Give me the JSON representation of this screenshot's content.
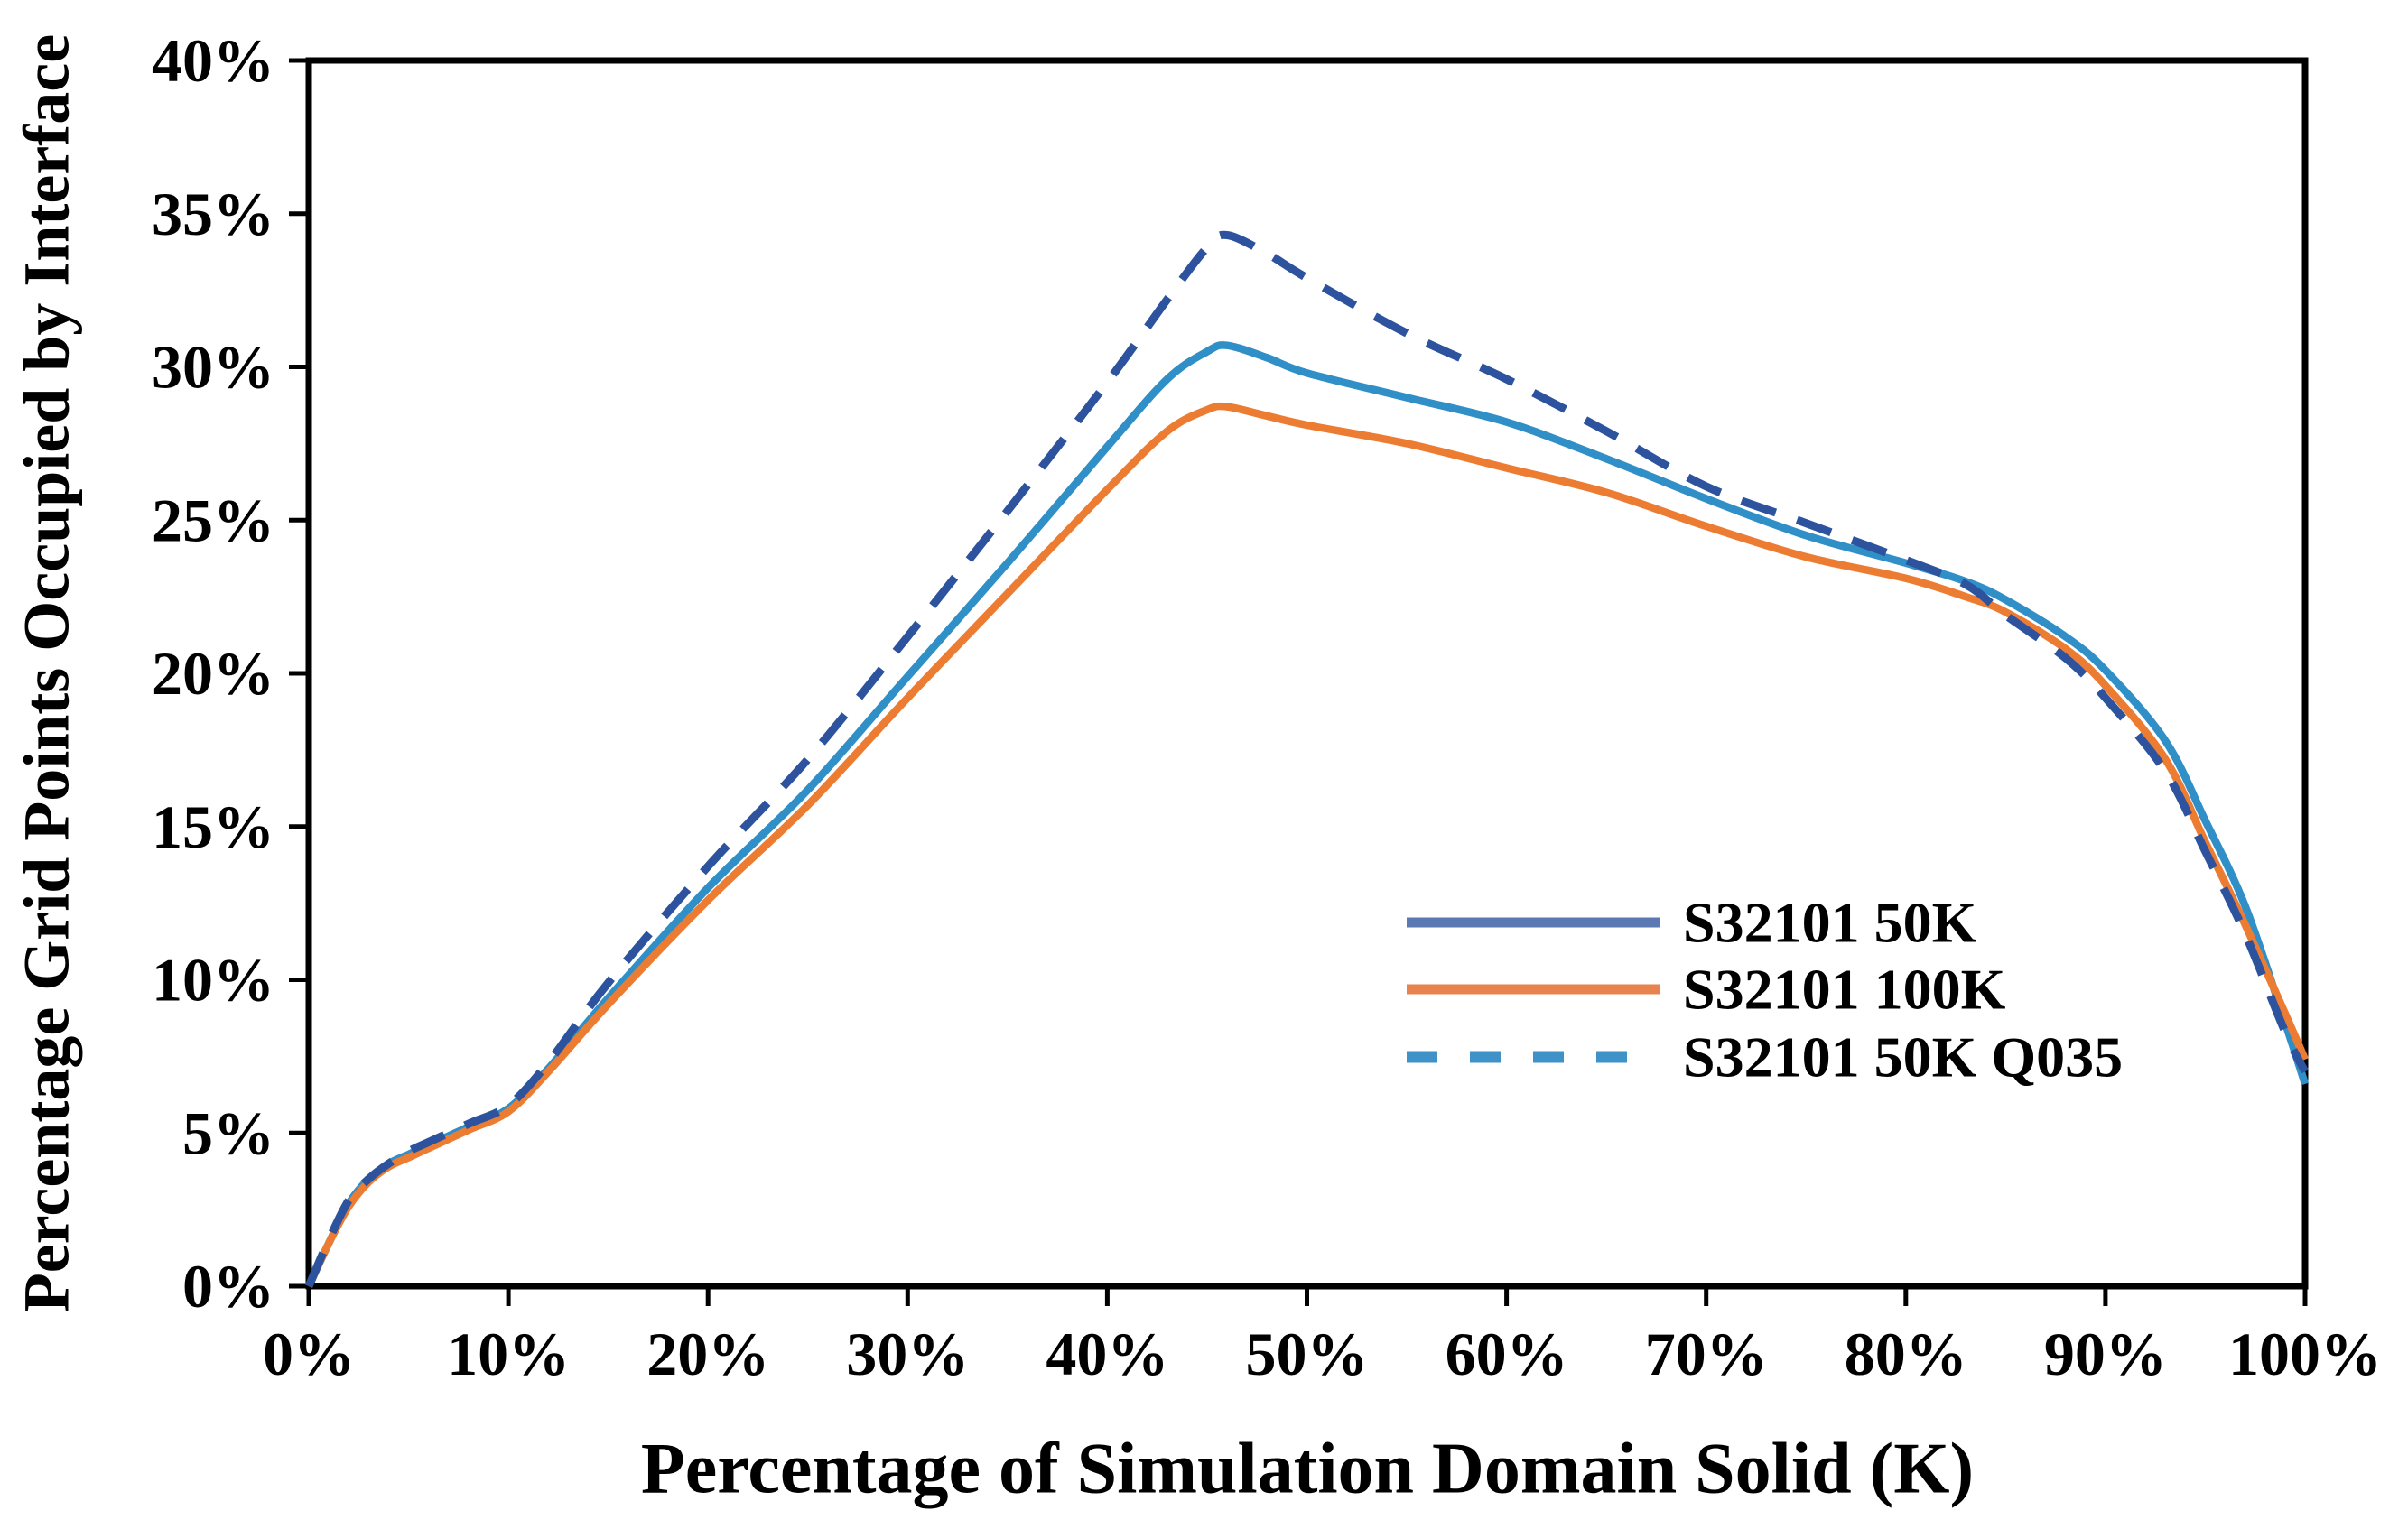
{
  "chart_data": {
    "type": "line",
    "title": "",
    "xlabel": "Percentage of Simulation Domain Solid (K)",
    "ylabel": "Percentage Grid Points Occupied by Interface",
    "xlim": [
      0,
      100
    ],
    "ylim": [
      0,
      40
    ],
    "grid": "off",
    "legend_position": "inside-right-middle",
    "x_tick_labels": [
      "0%",
      "10%",
      "20%",
      "30%",
      "40%",
      "50%",
      "60%",
      "70%",
      "80%",
      "90%",
      "100%"
    ],
    "y_tick_labels": [
      "0%",
      "5%",
      "10%",
      "15%",
      "20%",
      "25%",
      "30%",
      "35%",
      "40%"
    ],
    "x": [
      0,
      1,
      2,
      3,
      4,
      5,
      6,
      8,
      10,
      12,
      15,
      20,
      25,
      30,
      35,
      40,
      43,
      45,
      46,
      48,
      50,
      55,
      60,
      65,
      70,
      75,
      80,
      83,
      85,
      88,
      90,
      93,
      95,
      97,
      99,
      100
    ],
    "series": [
      {
        "name": "S32101 50K",
        "style": "solid",
        "color": "#2f8fc6",
        "legend_color": "#5b79b3",
        "values": [
          0,
          1.4,
          2.7,
          3.5,
          4.0,
          4.3,
          4.6,
          5.2,
          5.8,
          7.1,
          9.4,
          13.0,
          16.2,
          19.9,
          23.6,
          27.4,
          29.6,
          30.5,
          30.7,
          30.3,
          29.8,
          29.0,
          28.2,
          27.0,
          25.7,
          24.5,
          23.6,
          23.0,
          22.4,
          21.2,
          20.1,
          17.8,
          15.2,
          12.4,
          8.6,
          6.6
        ]
      },
      {
        "name": "S32101 100K",
        "style": "solid",
        "color": "#ed7c33",
        "legend_color": "#e8834f",
        "values": [
          0,
          1.4,
          2.6,
          3.4,
          3.9,
          4.2,
          4.5,
          5.1,
          5.7,
          7.0,
          9.2,
          12.6,
          15.7,
          19.2,
          22.6,
          26.0,
          27.9,
          28.6,
          28.7,
          28.4,
          28.1,
          27.5,
          26.7,
          25.9,
          24.8,
          23.8,
          23.1,
          22.5,
          22.0,
          20.8,
          19.6,
          17.2,
          14.5,
          11.8,
          8.9,
          7.4
        ]
      },
      {
        "name": "S32101 50K Q035",
        "style": "dashed",
        "color": "#2d539e",
        "legend_color": "#3f92c8",
        "values": [
          0,
          1.5,
          2.8,
          3.5,
          4.0,
          4.4,
          4.7,
          5.3,
          5.9,
          7.3,
          9.9,
          13.7,
          17.2,
          21.2,
          25.3,
          29.5,
          32.2,
          33.9,
          34.3,
          33.7,
          32.9,
          31.1,
          29.6,
          27.9,
          26.1,
          24.9,
          23.7,
          22.9,
          21.9,
          20.5,
          19.2,
          16.8,
          14.2,
          11.5,
          8.3,
          7.0
        ]
      }
    ]
  }
}
